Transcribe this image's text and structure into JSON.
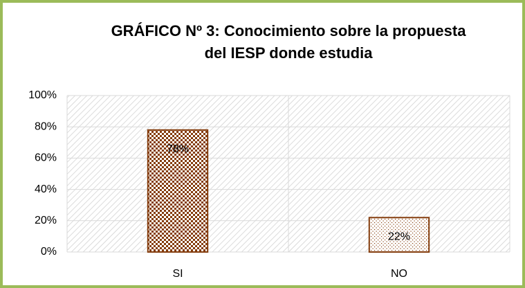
{
  "chart_data": {
    "type": "bar",
    "title": [
      "GRÁFICO Nº 3: Conocimiento sobre la propuesta",
      "del IESP donde estudia"
    ],
    "categories": [
      "SI",
      "NO"
    ],
    "values": [
      78,
      22
    ],
    "value_labels": [
      "78%",
      "22%"
    ],
    "color": "#843c0c",
    "ylim": [
      0,
      100
    ],
    "yticks": [
      {
        "value": 0,
        "label": "0%"
      },
      {
        "value": 20,
        "label": "20%"
      },
      {
        "value": 40,
        "label": "40%"
      },
      {
        "value": 60,
        "label": "60%"
      },
      {
        "value": 80,
        "label": "80%"
      },
      {
        "value": 100,
        "label": "100%"
      }
    ],
    "grid": true
  }
}
